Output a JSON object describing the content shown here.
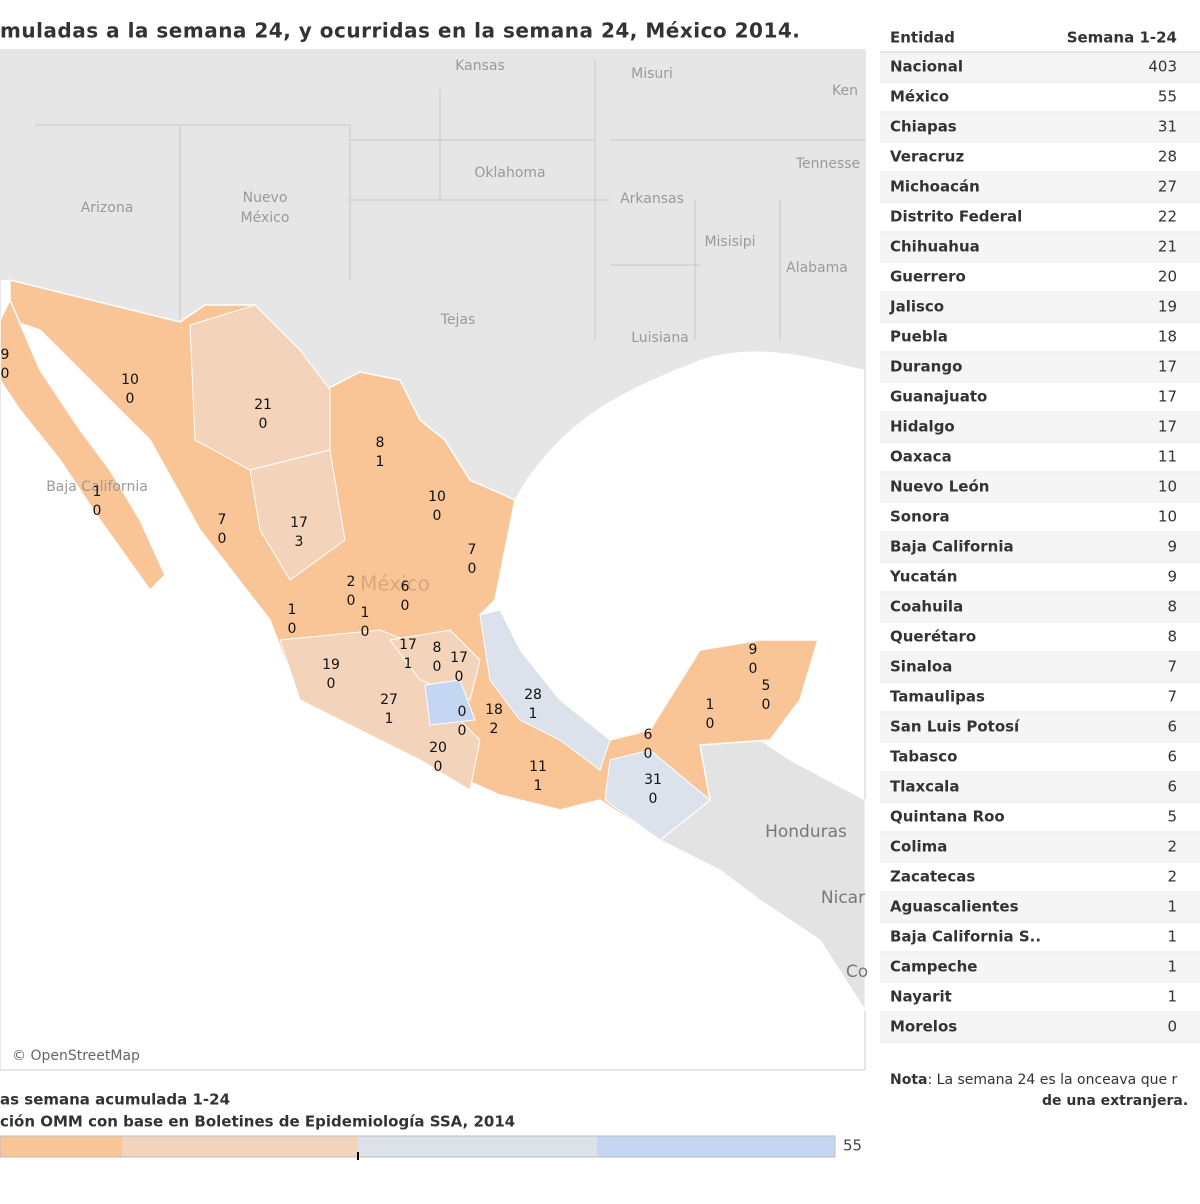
{
  "header": {
    "title": "muladas a la semana 24, y ocurridas en la semana 24, México 2014."
  },
  "map": {
    "copyright": "© OpenStreetMap",
    "place_labels": [
      "Kansas",
      "Misuri",
      "Ken",
      "Oklahoma",
      "Tennesse",
      "Arizona",
      "Nuevo",
      "México",
      "Arkansas",
      "Misisipi",
      "Alabama",
      "Tejas",
      "Luisiana",
      "Honduras",
      "Nicar",
      "Co",
      "Baja California",
      "México"
    ],
    "states": [
      [
        9,
        0
      ],
      [
        10,
        0
      ],
      [
        21,
        0
      ],
      [
        8,
        1
      ],
      [
        1,
        0
      ],
      [
        7,
        0
      ],
      [
        17,
        3
      ],
      [
        10,
        0
      ],
      [
        7,
        0
      ],
      [
        2,
        0
      ],
      [
        6,
        0
      ],
      [
        1,
        0
      ],
      [
        1,
        0
      ],
      [
        17,
        1
      ],
      [
        8,
        0
      ],
      [
        17,
        0
      ],
      [
        19,
        0
      ],
      [
        27,
        1
      ],
      [
        0,
        0
      ],
      [
        18,
        2
      ],
      [
        28,
        1
      ],
      [
        20,
        0
      ],
      [
        11,
        1
      ],
      [
        6,
        0
      ],
      [
        31,
        0
      ],
      [
        1,
        0
      ],
      [
        9,
        0
      ],
      [
        5,
        0
      ]
    ]
  },
  "table": {
    "columns": [
      "Entidad",
      "Semana 1-24"
    ],
    "rows": [
      [
        "Nacional",
        403
      ],
      [
        "México",
        55
      ],
      [
        "Chiapas",
        31
      ],
      [
        "Veracruz",
        28
      ],
      [
        "Michoacán",
        27
      ],
      [
        "Distrito Federal",
        22
      ],
      [
        "Chihuahua",
        21
      ],
      [
        "Guerrero",
        20
      ],
      [
        "Jalisco",
        19
      ],
      [
        "Puebla",
        18
      ],
      [
        "Durango",
        17
      ],
      [
        "Guanajuato",
        17
      ],
      [
        "Hidalgo",
        17
      ],
      [
        "Oaxaca",
        11
      ],
      [
        "Nuevo León",
        10
      ],
      [
        "Sonora",
        10
      ],
      [
        "Baja California",
        9
      ],
      [
        "Yucatán",
        9
      ],
      [
        "Coahuila",
        8
      ],
      [
        "Querétaro",
        8
      ],
      [
        "Sinaloa",
        7
      ],
      [
        "Tamaulipas",
        7
      ],
      [
        "San Luis Potosí",
        6
      ],
      [
        "Tabasco",
        6
      ],
      [
        "Tlaxcala",
        6
      ],
      [
        "Quintana Roo",
        5
      ],
      [
        "Colima",
        2
      ],
      [
        "Zacatecas",
        2
      ],
      [
        "Aguascalientes",
        1
      ],
      [
        "Baja California S..",
        1
      ],
      [
        "Campeche",
        1
      ],
      [
        "Nayarit",
        1
      ],
      [
        "Morelos",
        0
      ]
    ]
  },
  "legend": {
    "title": "as semana acumulada 1-24",
    "source": "ción OMM con base en Boletines de Epidemiología SSA, 2014",
    "max": 55
  },
  "note": {
    "label": "Nota",
    "text": ": La semana 24 es la onceava que r",
    "text2": "de una extranjera."
  }
}
